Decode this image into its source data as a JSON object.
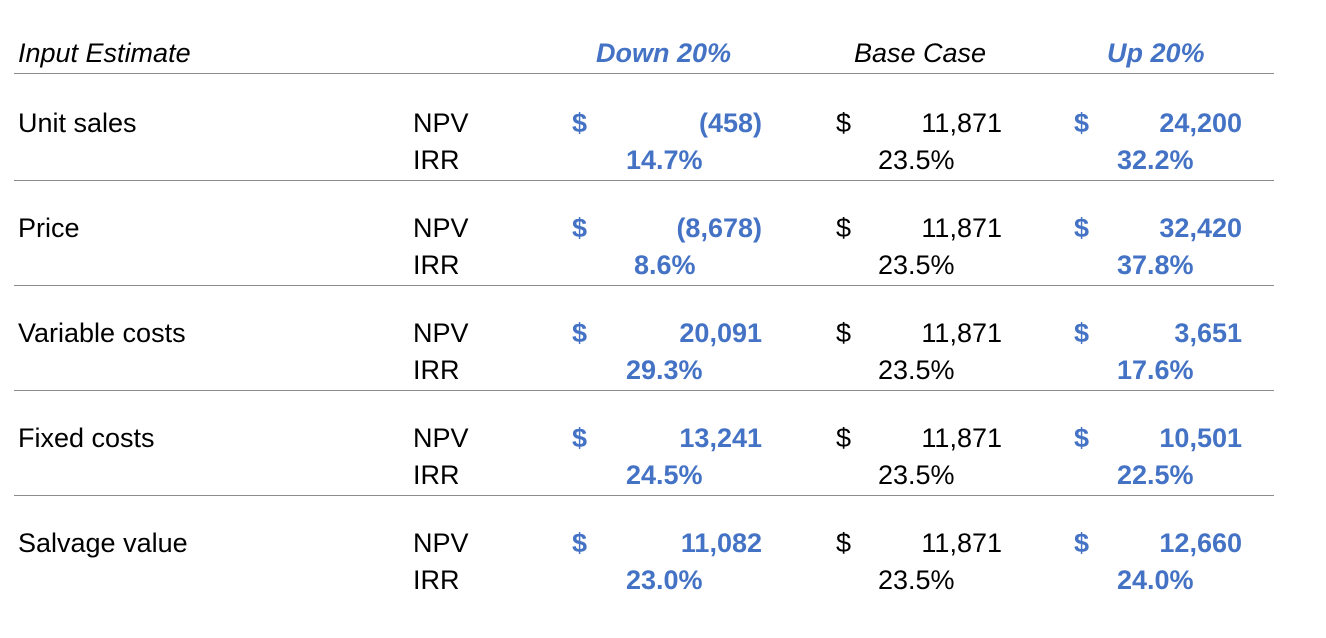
{
  "headers": {
    "input": "Input Estimate",
    "down": "Down 20%",
    "base": "Base Case",
    "up": "Up 20%"
  },
  "labels": {
    "npv": "NPV",
    "irr": "IRR",
    "currency": "$"
  },
  "rows": [
    {
      "name": "Unit sales",
      "down_npv": "(458)",
      "down_irr": "14.7%",
      "base_npv": "11,871",
      "base_irr": "23.5%",
      "up_npv": "24,200",
      "up_irr": "32.2%"
    },
    {
      "name": "Price",
      "down_npv": "(8,678)",
      "down_irr": "8.6%",
      "base_npv": "11,871",
      "base_irr": "23.5%",
      "up_npv": "32,420",
      "up_irr": "37.8%"
    },
    {
      "name": "Variable costs",
      "down_npv": "20,091",
      "down_irr": "29.3%",
      "base_npv": "11,871",
      "base_irr": "23.5%",
      "up_npv": "3,651",
      "up_irr": "17.6%"
    },
    {
      "name": "Fixed costs",
      "down_npv": "13,241",
      "down_irr": "24.5%",
      "base_npv": "11,871",
      "base_irr": "23.5%",
      "up_npv": "10,501",
      "up_irr": "22.5%"
    },
    {
      "name": "Salvage value",
      "down_npv": "11,082",
      "down_irr": "23.0%",
      "base_npv": "11,871",
      "base_irr": "23.5%",
      "up_npv": "12,660",
      "up_irr": "24.0%"
    }
  ]
}
